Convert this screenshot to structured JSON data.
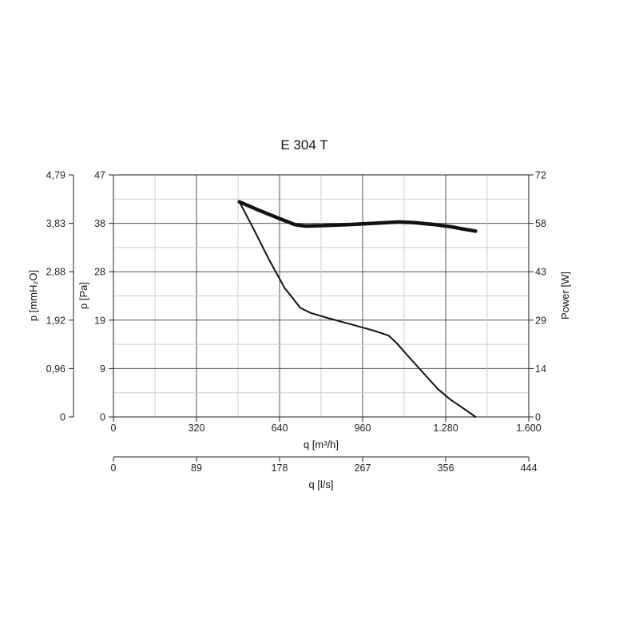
{
  "chart_data": {
    "type": "line",
    "title": "E 304 T",
    "xlabel": "q [m³/h]",
    "xlabel2": "q [l/s]",
    "ylabel_left_outer": "p [mmH₂O]",
    "ylabel_left": "p [Pa]",
    "ylabel_right": "Power [W]",
    "xlim": [
      0,
      1600
    ],
    "ylim": [
      0,
      47
    ],
    "y2lim": [
      0,
      72
    ],
    "x_ticks": [
      "0",
      "320",
      "640",
      "960",
      "1.280",
      "1.600"
    ],
    "x2_ticks": [
      "0",
      "89",
      "178",
      "267",
      "356",
      "444"
    ],
    "y_ticks_pa": [
      "0",
      "9",
      "19",
      "28",
      "38",
      "47"
    ],
    "y_ticks_mmh2o": [
      "0",
      "0,96",
      "1,92",
      "2,88",
      "3,83",
      "4,79"
    ],
    "y_ticks_power": [
      "0",
      "14",
      "29",
      "43",
      "58",
      "72"
    ],
    "grid": true,
    "series": [
      {
        "role": "pressure",
        "axis": "left",
        "x": [
          485,
          540,
          600,
          660,
          720,
          735,
          760,
          820,
          900,
          1000,
          1060,
          1090,
          1130,
          1180,
          1250,
          1300,
          1350,
          1395
        ],
        "y": [
          41.8,
          36.5,
          30.5,
          25.0,
          21.2,
          20.8,
          20.2,
          19.3,
          18.2,
          16.8,
          15.8,
          14.4,
          12.1,
          9.3,
          5.4,
          3.3,
          1.6,
          0.0
        ],
        "color": "#111111",
        "width": 2
      },
      {
        "role": "power",
        "axis": "right",
        "x": [
          485,
          560,
          640,
          700,
          740,
          800,
          900,
          1000,
          1100,
          1160,
          1240,
          1300,
          1340,
          1395
        ],
        "y": [
          64.0,
          61.5,
          59.0,
          57.2,
          56.8,
          56.9,
          57.2,
          57.6,
          58.0,
          57.8,
          57.2,
          56.6,
          56.0,
          55.3
        ],
        "color": "#111111",
        "width": 4.5
      }
    ]
  }
}
